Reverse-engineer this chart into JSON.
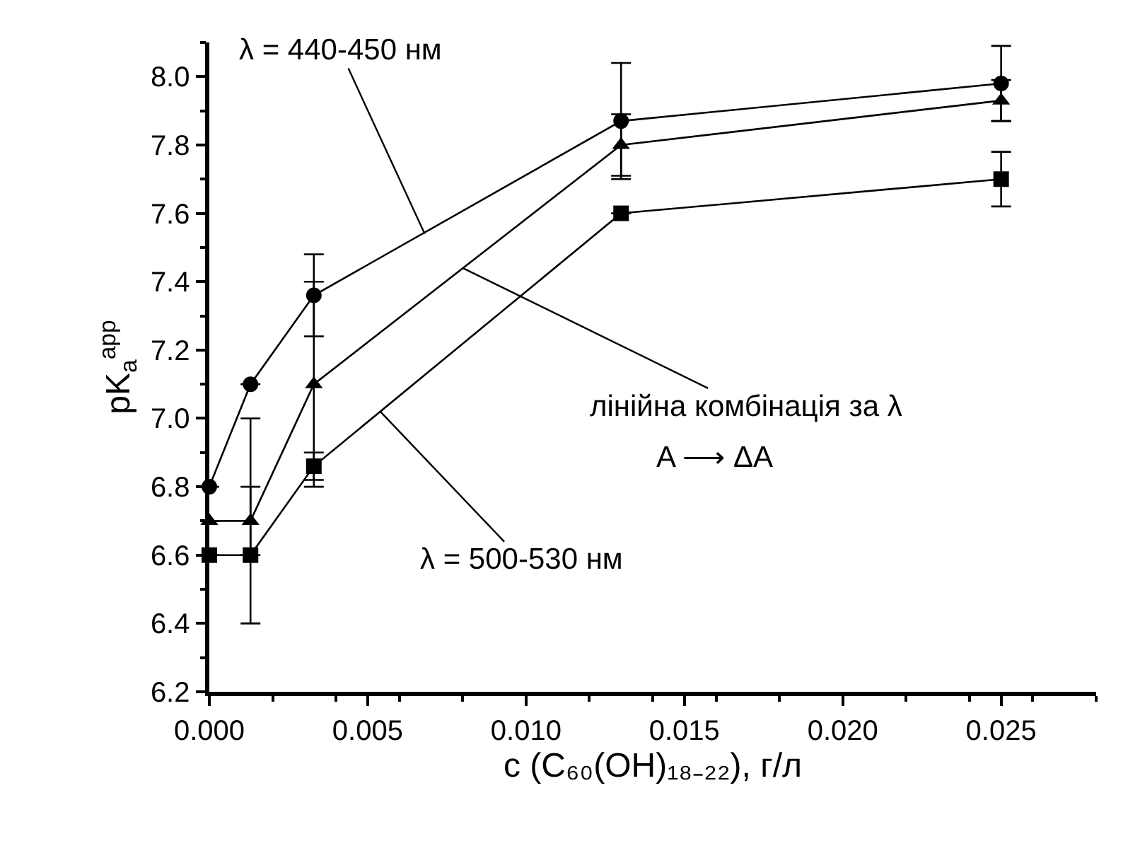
{
  "chart_data": {
    "type": "line",
    "xlabel": "c (C₆₀(OH)₁₈₋₂₂), г/л",
    "ylabel": "pK$_{a}$$^{app}$",
    "x": [
      0,
      0.0013,
      0.0033,
      0.013,
      0.025
    ],
    "series": [
      {
        "color": "#000000",
        "marker": "circle",
        "values": [
          6.8,
          7.1,
          7.36,
          7.87,
          7.98
        ],
        "errors": [
          null,
          null,
          0.12,
          [
            7.7,
            8.04
          ],
          0.11
        ]
      },
      {
        "color": "#000000",
        "marker": "triangle",
        "values": [
          6.7,
          6.7,
          7.1,
          7.8,
          7.93
        ],
        "errors": [
          null,
          0.1,
          0.3,
          0.09,
          0.06
        ]
      },
      {
        "color": "#000000",
        "marker": "square",
        "values": [
          6.6,
          6.6,
          6.86,
          7.6,
          7.7
        ],
        "errors": [
          null,
          [
            6.4,
            7.0
          ],
          0.04,
          null,
          0.08
        ]
      }
    ],
    "xlim": [
      0,
      0.028
    ],
    "xticks": [
      {
        "value": 0,
        "label": "0.000"
      },
      {
        "value": 0.005,
        "label": "0.005"
      },
      {
        "value": 0.01,
        "label": "0.010"
      },
      {
        "value": 0.015,
        "label": "0.015"
      },
      {
        "value": 0.02,
        "label": "0.020"
      },
      {
        "value": 0.025,
        "label": "0.025"
      }
    ],
    "ylim": [
      6.2,
      8.1
    ],
    "yticks": [
      {
        "value": 6.2,
        "label": "6.2"
      },
      {
        "value": 6.4,
        "label": "6.4"
      },
      {
        "value": 6.6,
        "label": "6.6"
      },
      {
        "value": 6.8,
        "label": "6.8"
      },
      {
        "value": 7.0,
        "label": "7.0"
      },
      {
        "value": 7.2,
        "label": "7.2"
      },
      {
        "value": 7.4,
        "label": "7.4"
      },
      {
        "value": 7.6,
        "label": "7.6"
      },
      {
        "value": 7.8,
        "label": "7.8"
      },
      {
        "value": 8.0,
        "label": "8.0"
      }
    ],
    "annotations": [
      {
        "text": "λ = 440-450 нм",
        "x": 0.0068,
        "y": 7.54
      },
      {
        "text": "лінійна комбінація за λ",
        "x": 0.008,
        "y": 7.44
      },
      "A ⟶ ΔA",
      {
        "text": "λ = 500-530 нм",
        "x": 0.0054,
        "y": 7.02
      }
    ],
    "line_style": "solid"
  }
}
